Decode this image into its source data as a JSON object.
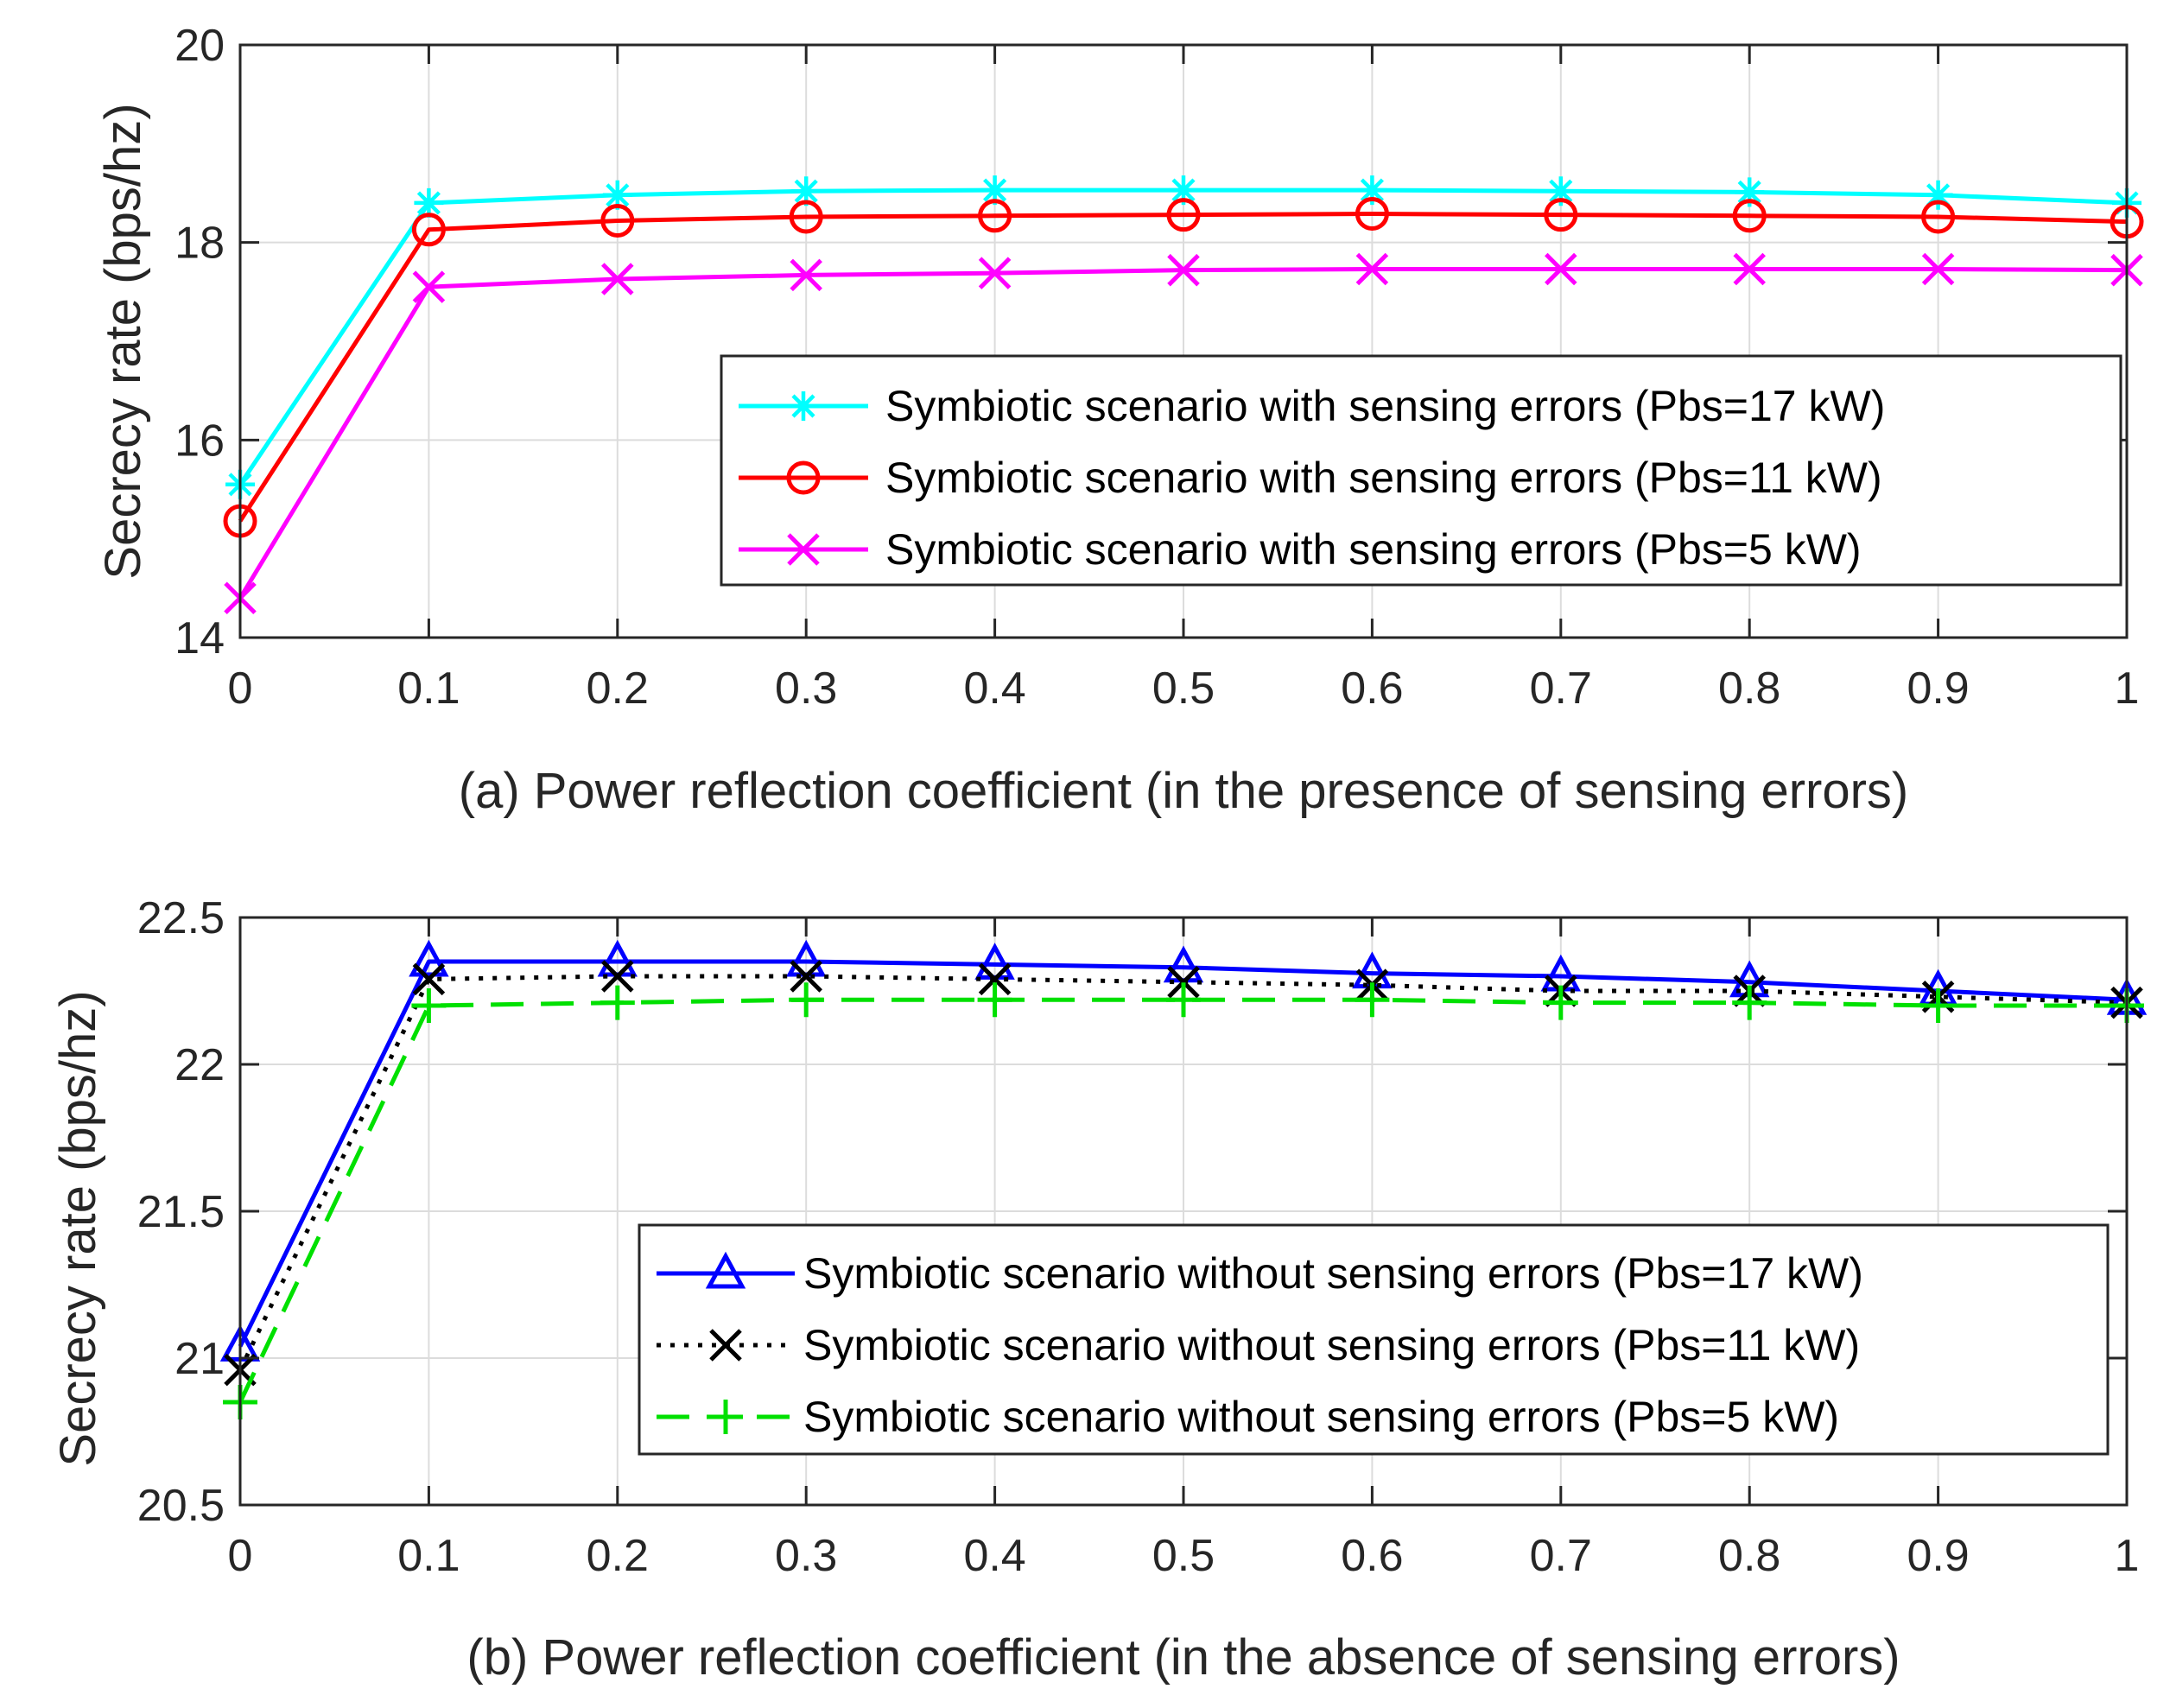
{
  "chart_data": [
    {
      "type": "line",
      "xlabel": "(a) Power reflection coefficient (in the presence of sensing errors)",
      "ylabel": "Secrecy rate (bps/hz)",
      "xlim": [
        0,
        1
      ],
      "ylim": [
        14,
        20
      ],
      "x_ticks": [
        "0",
        "0.1",
        "0.2",
        "0.3",
        "0.4",
        "0.5",
        "0.6",
        "0.7",
        "0.8",
        "0.9",
        "1"
      ],
      "y_ticks": [
        "14",
        "16",
        "18",
        "20"
      ],
      "grid": true,
      "legend_position": "center-right",
      "x": [
        0,
        0.1,
        0.2,
        0.3,
        0.4,
        0.5,
        0.6,
        0.7,
        0.8,
        0.9,
        1.0
      ],
      "series": [
        {
          "name": "Symbiotic scenario with sensing errors (Pbs=17 kW)",
          "values": [
            15.55,
            18.4,
            18.48,
            18.52,
            18.53,
            18.53,
            18.53,
            18.52,
            18.51,
            18.48,
            18.4
          ],
          "color": "#00ffff",
          "marker": "asterisk",
          "line": "solid"
        },
        {
          "name": "Symbiotic scenario with sensing errors (Pbs=11 kW)",
          "values": [
            15.18,
            18.13,
            18.22,
            18.26,
            18.27,
            18.28,
            18.29,
            18.28,
            18.27,
            18.26,
            18.21
          ],
          "color": "#ff0000",
          "marker": "circle",
          "line": "solid"
        },
        {
          "name": "Symbiotic scenario with sensing errors (Pbs=5 kW)",
          "values": [
            14.4,
            17.55,
            17.63,
            17.67,
            17.69,
            17.72,
            17.73,
            17.73,
            17.73,
            17.73,
            17.72
          ],
          "color": "#ff00ff",
          "marker": "x",
          "line": "solid"
        }
      ]
    },
    {
      "type": "line",
      "xlabel": "(b) Power reflection coefficient (in the absence of sensing errors)",
      "ylabel": "Secrecy rate (bps/hz)",
      "xlim": [
        0,
        1
      ],
      "ylim": [
        20.5,
        22.5
      ],
      "x_ticks": [
        "0",
        "0.1",
        "0.2",
        "0.3",
        "0.4",
        "0.5",
        "0.6",
        "0.7",
        "0.8",
        "0.9",
        "1"
      ],
      "y_ticks": [
        "20.5",
        "21",
        "21.5",
        "22",
        "22.5"
      ],
      "grid": true,
      "legend_position": "center-right",
      "x": [
        0,
        0.1,
        0.2,
        0.3,
        0.4,
        0.5,
        0.6,
        0.7,
        0.8,
        0.9,
        1.0
      ],
      "series": [
        {
          "name": "Symbiotic scenario without sensing errors (Pbs=17 kW)",
          "values": [
            21.04,
            22.35,
            22.35,
            22.35,
            22.34,
            22.33,
            22.31,
            22.3,
            22.28,
            22.25,
            22.22
          ],
          "color": "#0000ff",
          "marker": "triangle",
          "line": "solid"
        },
        {
          "name": "Symbiotic scenario without sensing errors (Pbs=11 kW)",
          "values": [
            20.96,
            22.29,
            22.3,
            22.3,
            22.29,
            22.28,
            22.27,
            22.25,
            22.25,
            22.23,
            22.21
          ],
          "color": "#000000",
          "marker": "x",
          "line": "dotted"
        },
        {
          "name": "Symbiotic scenario without sensing errors (Pbs=5 kW)",
          "values": [
            20.85,
            22.2,
            22.21,
            22.22,
            22.22,
            22.22,
            22.22,
            22.21,
            22.21,
            22.2,
            22.2
          ],
          "color": "#00e000",
          "marker": "plus",
          "line": "dashed"
        }
      ]
    }
  ]
}
